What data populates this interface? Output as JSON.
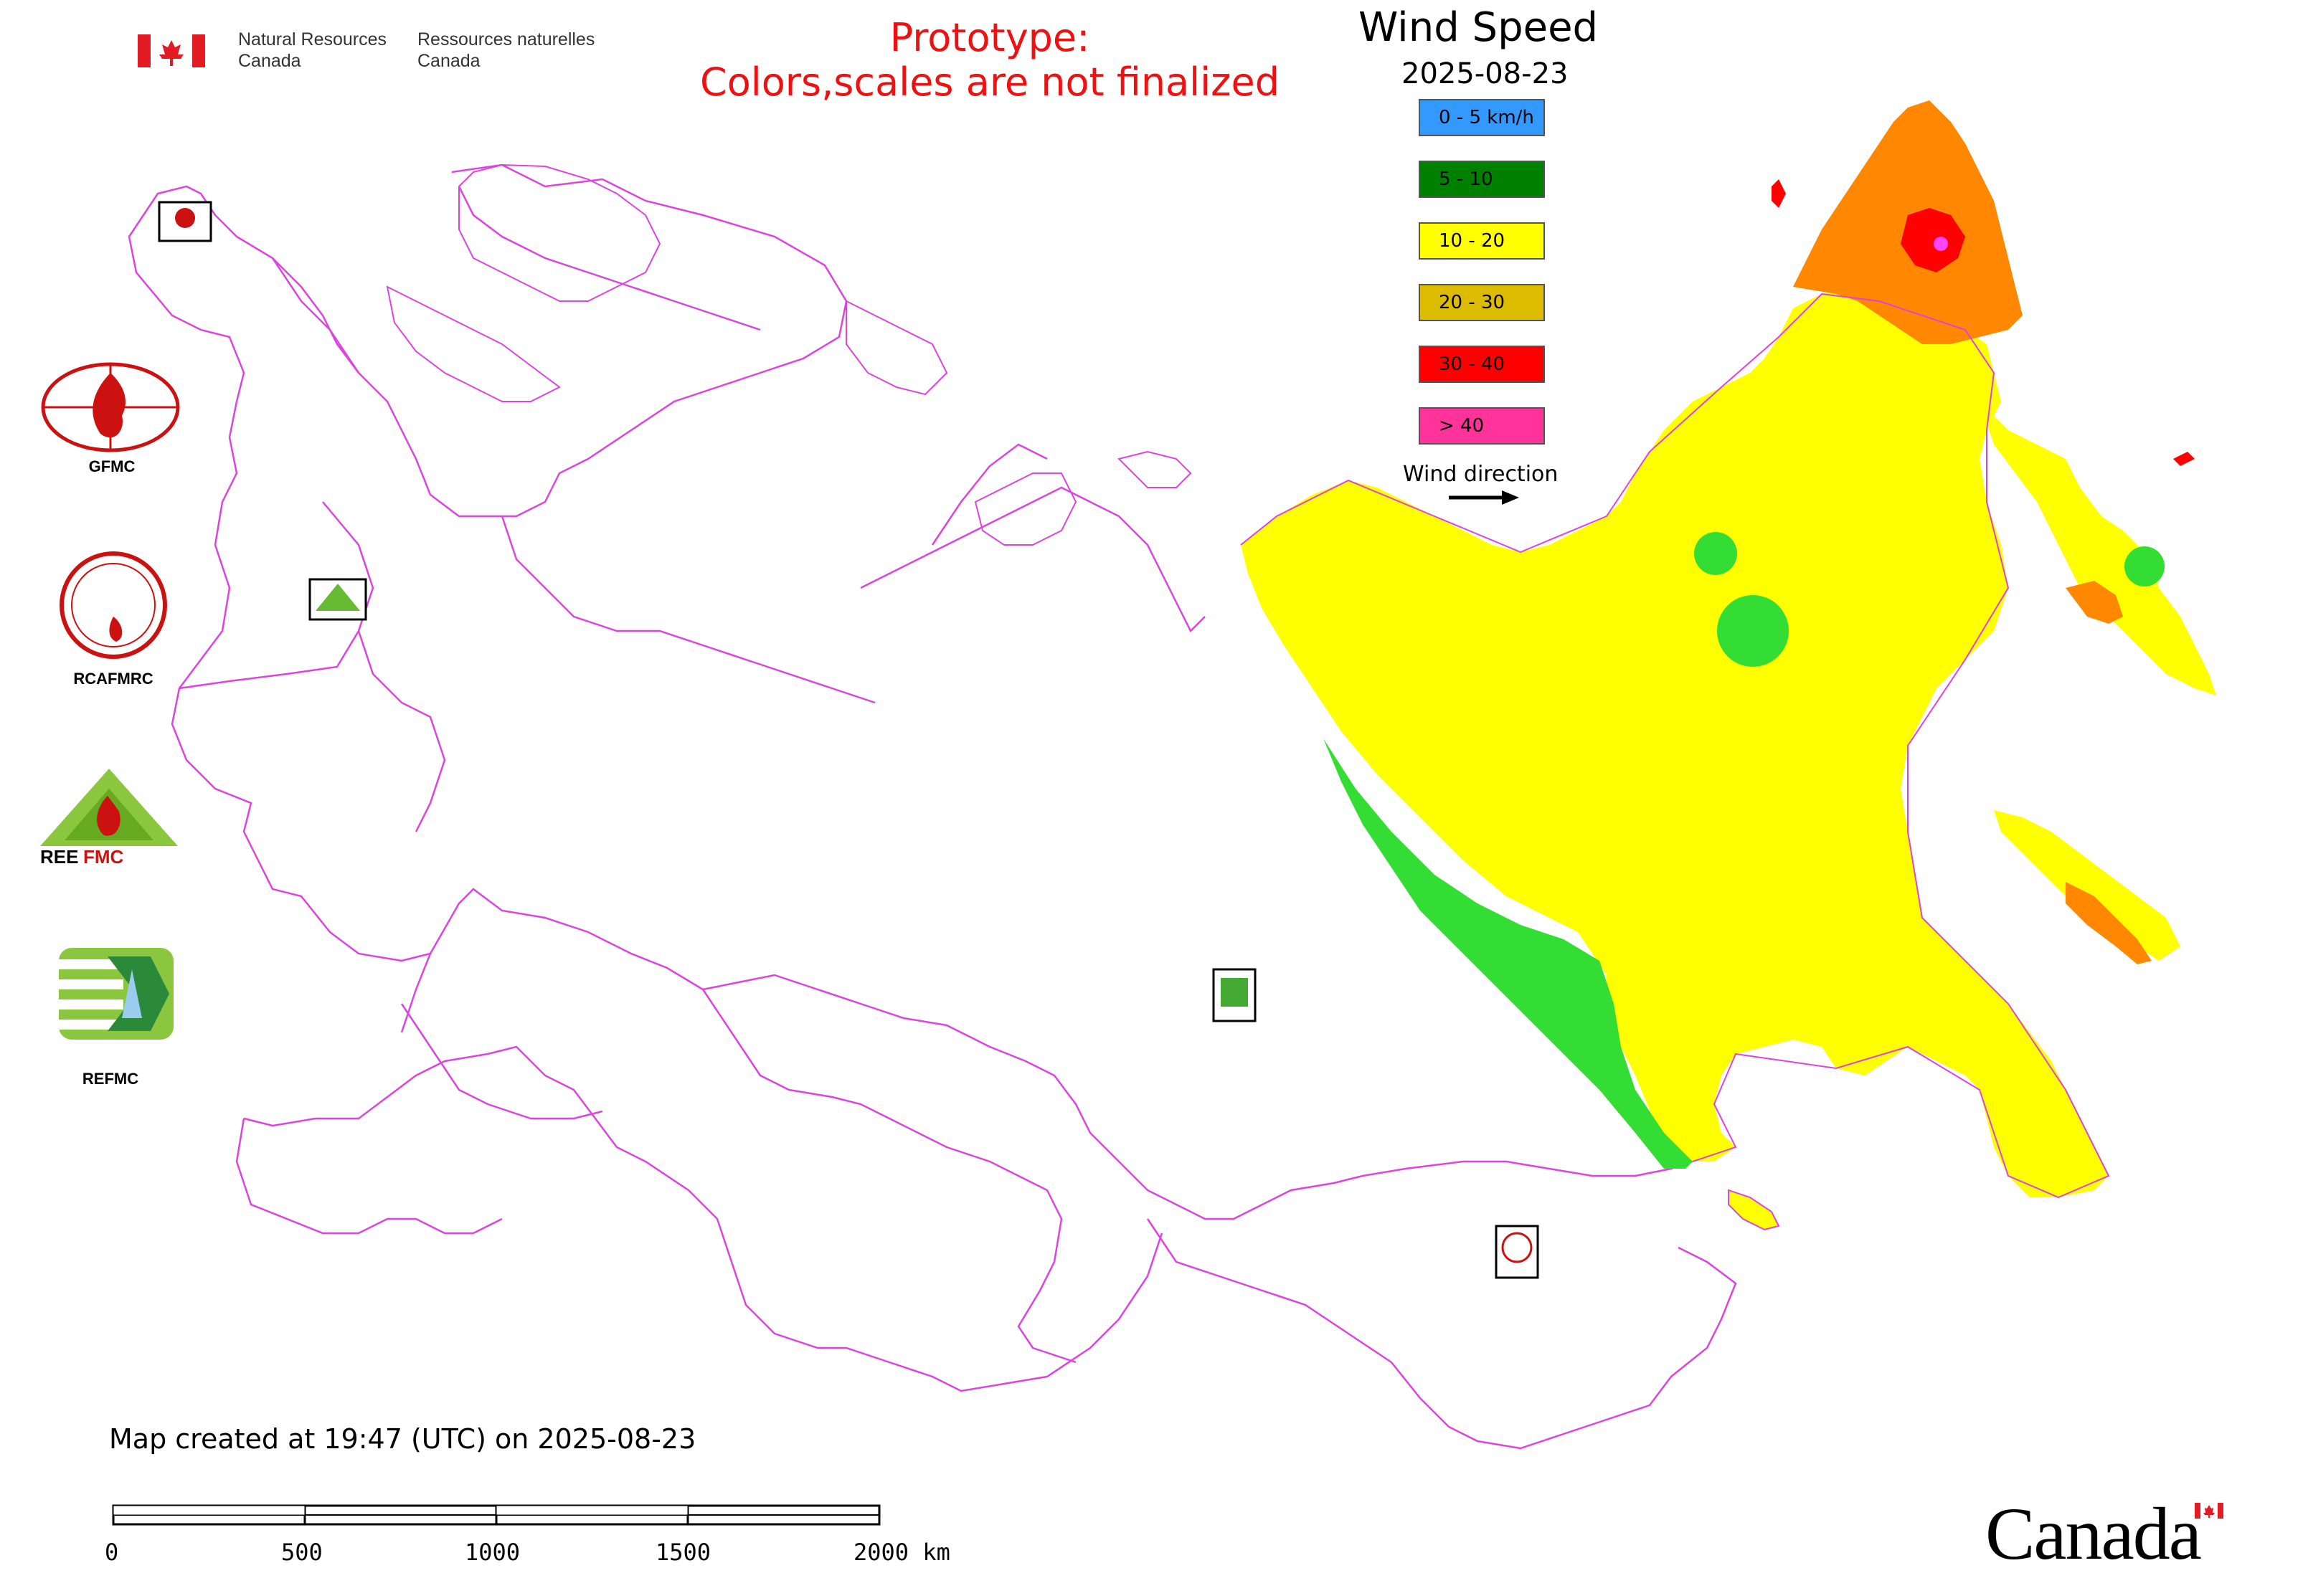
{
  "header": {
    "nrcan_en": [
      "Natural Resources",
      "Canada"
    ],
    "nrcan_fr": [
      "Ressources naturelles",
      "Canada"
    ],
    "prototype_line1": "Prototype:",
    "prototype_line2": "Colors,scales are not finalized"
  },
  "legend": {
    "title": "Wind Speed",
    "date": "2025-08-23",
    "items": [
      {
        "label": "0 - 5 km/h",
        "color": "#3399ff"
      },
      {
        "label": "5 - 10",
        "color": "#008000"
      },
      {
        "label": "10 - 20",
        "color": "#ffff00"
      },
      {
        "label": "20 - 30",
        "color": "#ddbb00"
      },
      {
        "label": "30 - 40",
        "color": "#ff0000"
      },
      {
        "label": "> 40",
        "color": "#ff3399"
      }
    ],
    "wind_direction_label": "Wind direction"
  },
  "logos": {
    "gfmc": "GFMC",
    "rcafmrc": "RCAFMRC",
    "reefmc": "REEFMC",
    "refmc": "REFMC"
  },
  "map_colors": {
    "boundary": "#dd44dd",
    "zone_10_20": "#ffff00",
    "zone_light_green": "#33dd33",
    "zone_orange": "#ff8800",
    "zone_red": "#ff0000",
    "zone_magenta": "#ff44ff"
  },
  "footer": {
    "created": "Map created at 19:47 (UTC) on 2025-08-23",
    "scale_ticks": [
      "0",
      "500",
      "1000",
      "1500",
      "2000 km"
    ],
    "wordmark": "Canada"
  }
}
